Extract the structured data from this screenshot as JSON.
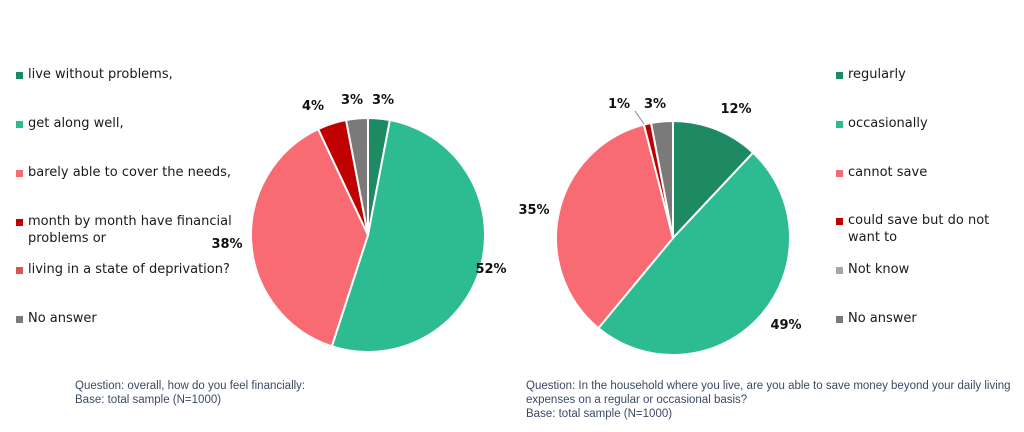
{
  "chart_data": [
    {
      "type": "pie",
      "categories": [
        "live without problems,",
        "get along well,",
        "barely able to cover the needs,",
        "month by month have financial problems or",
        "living in a state of deprivation?",
        "No answer"
      ],
      "values": [
        3,
        52,
        38,
        4,
        0,
        3
      ],
      "value_labels": [
        "3%",
        "52%",
        "38%",
        "4%",
        null,
        "3%"
      ],
      "colors": [
        "#1e8a64",
        "#2dbb91",
        "#f96b72",
        "#c00000",
        "#d9534f",
        "#7a7a7a"
      ],
      "note": [
        "Question: overall, how do you feel financially:",
        "Base: total sample (N=1000)"
      ],
      "legend_position": "left"
    },
    {
      "type": "pie",
      "categories": [
        "regularly",
        "occasionally",
        "cannot save",
        "could save but do not want to",
        "Not know",
        "No answer"
      ],
      "values": [
        12,
        49,
        35,
        1,
        0,
        3
      ],
      "value_labels": [
        "12%",
        "49%",
        "35%",
        "1%",
        null,
        "3%"
      ],
      "colors": [
        "#1e8a64",
        "#2dbb91",
        "#f96b72",
        "#c00000",
        "#a6a6a6",
        "#7a7a7a"
      ],
      "note": [
        "Question: In the household where you live, are you able to save money beyond your daily living",
        "expenses on a regular or occasional basis?",
        "Base: total sample (N=1000)"
      ],
      "legend_position": "right"
    }
  ]
}
